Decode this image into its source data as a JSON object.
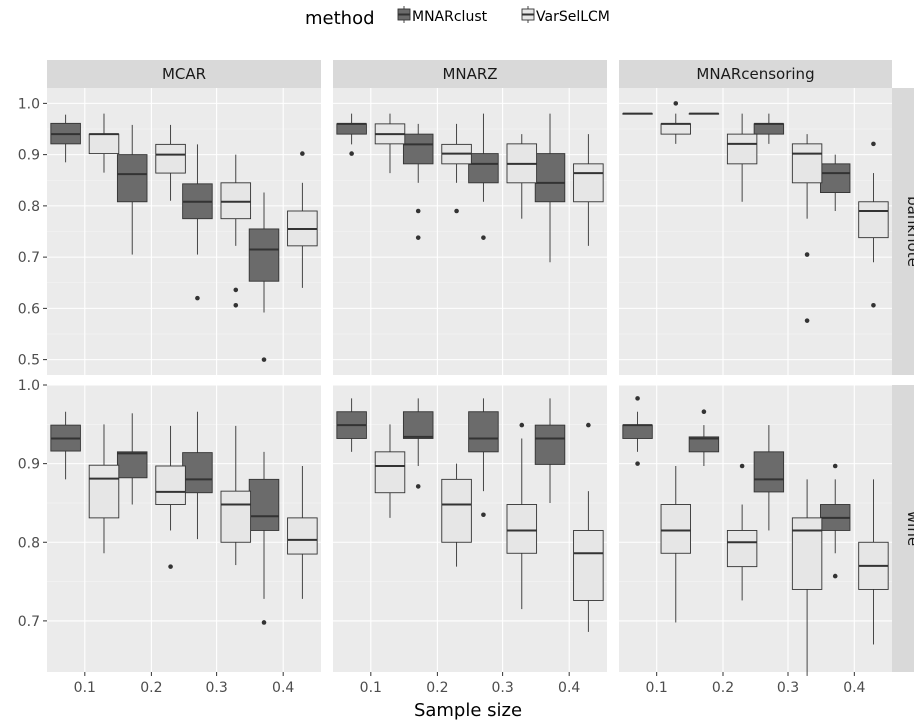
{
  "chart_data": {
    "type": "boxplot",
    "xlabel": "Sample size",
    "legend": {
      "title": "method",
      "position": "top",
      "entries": [
        {
          "name": "MNARclust",
          "color": "#6b6b6b"
        },
        {
          "name": "VarSelLCM",
          "color": "#e6e6e6"
        }
      ]
    },
    "columns": [
      "MCAR",
      "MNARZ",
      "MNARcensoring"
    ],
    "rows": [
      "banknote",
      "wine"
    ],
    "categories": [
      "0.1",
      "0.2",
      "0.3",
      "0.4"
    ],
    "y_axes": {
      "banknote": {
        "ylim": [
          0.47,
          1.03
        ],
        "ticks": [
          "0.5",
          "0.6",
          "0.7",
          "0.8",
          "0.9",
          "1.0"
        ],
        "tick_values": [
          0.5,
          0.6,
          0.7,
          0.8,
          0.9,
          1.0
        ]
      },
      "wine": {
        "ylim": [
          0.635,
          1.0
        ],
        "ticks": [
          "0.7",
          "0.8",
          "0.9",
          "1.0"
        ],
        "tick_values": [
          0.7,
          0.8,
          0.9,
          1.0
        ]
      }
    },
    "panels": [
      {
        "row": "banknote",
        "col": "MCAR",
        "boxes": {
          "MNARclust": [
            {
              "min": 0.885,
              "q1": 0.921,
              "median": 0.94,
              "q3": 0.961,
              "max": 0.978,
              "outliers": []
            },
            {
              "min": 0.705,
              "q1": 0.808,
              "median": 0.862,
              "q3": 0.9,
              "max": 0.958,
              "outliers": []
            },
            {
              "min": 0.705,
              "q1": 0.775,
              "median": 0.808,
              "q3": 0.843,
              "max": 0.92,
              "outliers": [
                0.62
              ]
            },
            {
              "min": 0.592,
              "q1": 0.653,
              "median": 0.715,
              "q3": 0.755,
              "max": 0.826,
              "outliers": [
                0.5
              ]
            }
          ],
          "VarSelLCM": [
            {
              "min": 0.865,
              "q1": 0.902,
              "median": 0.94,
              "q3": 0.94,
              "max": 0.98,
              "outliers": []
            },
            {
              "min": 0.81,
              "q1": 0.864,
              "median": 0.9,
              "q3": 0.92,
              "max": 0.958,
              "outliers": []
            },
            {
              "min": 0.722,
              "q1": 0.775,
              "median": 0.808,
              "q3": 0.845,
              "max": 0.9,
              "outliers": [
                0.636,
                0.606
              ]
            },
            {
              "min": 0.64,
              "q1": 0.722,
              "median": 0.755,
              "q3": 0.79,
              "max": 0.845,
              "outliers": [
                0.902
              ]
            }
          ]
        }
      },
      {
        "row": "banknote",
        "col": "MNARZ",
        "boxes": {
          "MNARclust": [
            {
              "min": 0.92,
              "q1": 0.94,
              "median": 0.96,
              "q3": 0.96,
              "max": 0.98,
              "outliers": [
                0.902
              ]
            },
            {
              "min": 0.845,
              "q1": 0.882,
              "median": 0.92,
              "q3": 0.94,
              "max": 0.96,
              "outliers": [
                0.79,
                0.738
              ]
            },
            {
              "min": 0.808,
              "q1": 0.845,
              "median": 0.882,
              "q3": 0.902,
              "max": 0.98,
              "outliers": [
                0.738
              ]
            },
            {
              "min": 0.69,
              "q1": 0.808,
              "median": 0.845,
              "q3": 0.902,
              "max": 0.98,
              "outliers": []
            }
          ],
          "VarSelLCM": [
            {
              "min": 0.864,
              "q1": 0.921,
              "median": 0.94,
              "q3": 0.96,
              "max": 0.98,
              "outliers": []
            },
            {
              "min": 0.845,
              "q1": 0.882,
              "median": 0.902,
              "q3": 0.92,
              "max": 0.96,
              "outliers": [
                0.79
              ]
            },
            {
              "min": 0.775,
              "q1": 0.845,
              "median": 0.882,
              "q3": 0.921,
              "max": 0.94,
              "outliers": []
            },
            {
              "min": 0.722,
              "q1": 0.808,
              "median": 0.864,
              "q3": 0.882,
              "max": 0.94,
              "outliers": []
            }
          ]
        }
      },
      {
        "row": "banknote",
        "col": "MNARcensoring",
        "boxes": {
          "MNARclust": [
            {
              "min": 0.98,
              "q1": 0.98,
              "median": 0.98,
              "q3": 0.98,
              "max": 0.98,
              "outliers": []
            },
            {
              "min": 0.98,
              "q1": 0.98,
              "median": 0.98,
              "q3": 0.98,
              "max": 0.98,
              "outliers": []
            },
            {
              "min": 0.921,
              "q1": 0.94,
              "median": 0.96,
              "q3": 0.96,
              "max": 0.98,
              "outliers": []
            },
            {
              "min": 0.79,
              "q1": 0.826,
              "median": 0.864,
              "q3": 0.882,
              "max": 0.9,
              "outliers": []
            }
          ],
          "VarSelLCM": [
            {
              "min": 0.921,
              "q1": 0.94,
              "median": 0.96,
              "q3": 0.96,
              "max": 0.98,
              "outliers": [
                1.0
              ]
            },
            {
              "min": 0.808,
              "q1": 0.882,
              "median": 0.921,
              "q3": 0.94,
              "max": 0.98,
              "outliers": []
            },
            {
              "min": 0.775,
              "q1": 0.845,
              "median": 0.902,
              "q3": 0.921,
              "max": 0.94,
              "outliers": [
                0.705,
                0.576
              ]
            },
            {
              "min": 0.69,
              "q1": 0.738,
              "median": 0.79,
              "q3": 0.808,
              "max": 0.864,
              "outliers": [
                0.921,
                0.606
              ]
            }
          ]
        }
      },
      {
        "row": "wine",
        "col": "MCAR",
        "boxes": {
          "MNARclust": [
            {
              "min": 0.88,
              "q1": 0.916,
              "median": 0.932,
              "q3": 0.949,
              "max": 0.966,
              "outliers": []
            },
            {
              "min": 0.848,
              "q1": 0.882,
              "median": 0.913,
              "q3": 0.915,
              "max": 0.964,
              "outliers": []
            },
            {
              "min": 0.804,
              "q1": 0.863,
              "median": 0.88,
              "q3": 0.914,
              "max": 0.966,
              "outliers": []
            },
            {
              "min": 0.728,
              "q1": 0.815,
              "median": 0.833,
              "q3": 0.88,
              "max": 0.915,
              "outliers": [
                0.698
              ]
            }
          ],
          "VarSelLCM": [
            {
              "min": 0.786,
              "q1": 0.831,
              "median": 0.881,
              "q3": 0.898,
              "max": 0.95,
              "outliers": []
            },
            {
              "min": 0.815,
              "q1": 0.848,
              "median": 0.864,
              "q3": 0.897,
              "max": 0.948,
              "outliers": [
                0.769
              ]
            },
            {
              "min": 0.771,
              "q1": 0.8,
              "median": 0.848,
              "q3": 0.865,
              "max": 0.948,
              "outliers": []
            },
            {
              "min": 0.728,
              "q1": 0.785,
              "median": 0.803,
              "q3": 0.831,
              "max": 0.897,
              "outliers": []
            }
          ]
        }
      },
      {
        "row": "wine",
        "col": "MNARZ",
        "boxes": {
          "MNARclust": [
            {
              "min": 0.915,
              "q1": 0.932,
              "median": 0.949,
              "q3": 0.966,
              "max": 0.983,
              "outliers": []
            },
            {
              "min": 0.897,
              "q1": 0.932,
              "median": 0.934,
              "q3": 0.966,
              "max": 0.983,
              "outliers": [
                0.871
              ]
            },
            {
              "min": 0.865,
              "q1": 0.915,
              "median": 0.932,
              "q3": 0.966,
              "max": 0.983,
              "outliers": [
                0.835
              ]
            },
            {
              "min": 0.85,
              "q1": 0.899,
              "median": 0.932,
              "q3": 0.949,
              "max": 0.983,
              "outliers": []
            }
          ],
          "VarSelLCM": [
            {
              "min": 0.831,
              "q1": 0.863,
              "median": 0.897,
              "q3": 0.915,
              "max": 0.95,
              "outliers": []
            },
            {
              "min": 0.769,
              "q1": 0.8,
              "median": 0.848,
              "q3": 0.88,
              "max": 0.9,
              "outliers": []
            },
            {
              "min": 0.715,
              "q1": 0.786,
              "median": 0.815,
              "q3": 0.848,
              "max": 0.932,
              "outliers": [
                0.949
              ]
            },
            {
              "min": 0.686,
              "q1": 0.726,
              "median": 0.786,
              "q3": 0.815,
              "max": 0.865,
              "outliers": [
                0.949
              ]
            }
          ]
        }
      },
      {
        "row": "wine",
        "col": "MNARcensoring",
        "boxes": {
          "MNARclust": [
            {
              "min": 0.915,
              "q1": 0.932,
              "median": 0.949,
              "q3": 0.949,
              "max": 0.966,
              "outliers": [
                0.983,
                0.9
              ]
            },
            {
              "min": 0.897,
              "q1": 0.915,
              "median": 0.932,
              "q3": 0.934,
              "max": 0.949,
              "outliers": [
                0.966
              ]
            },
            {
              "min": 0.815,
              "q1": 0.864,
              "median": 0.88,
              "q3": 0.915,
              "max": 0.949,
              "outliers": []
            },
            {
              "min": 0.786,
              "q1": 0.815,
              "median": 0.831,
              "q3": 0.848,
              "max": 0.88,
              "outliers": [
                0.897,
                0.757
              ]
            }
          ],
          "VarSelLCM": [
            {
              "min": 0.698,
              "q1": 0.786,
              "median": 0.815,
              "q3": 0.848,
              "max": 0.897,
              "outliers": []
            },
            {
              "min": 0.726,
              "q1": 0.769,
              "median": 0.8,
              "q3": 0.815,
              "max": 0.848,
              "outliers": [
                0.897
              ]
            },
            {
              "min": 0.63,
              "q1": 0.74,
              "median": 0.815,
              "q3": 0.831,
              "max": 0.88,
              "outliers": []
            },
            {
              "min": 0.67,
              "q1": 0.74,
              "median": 0.77,
              "q3": 0.8,
              "max": 0.88,
              "outliers": []
            }
          ]
        }
      }
    ]
  }
}
